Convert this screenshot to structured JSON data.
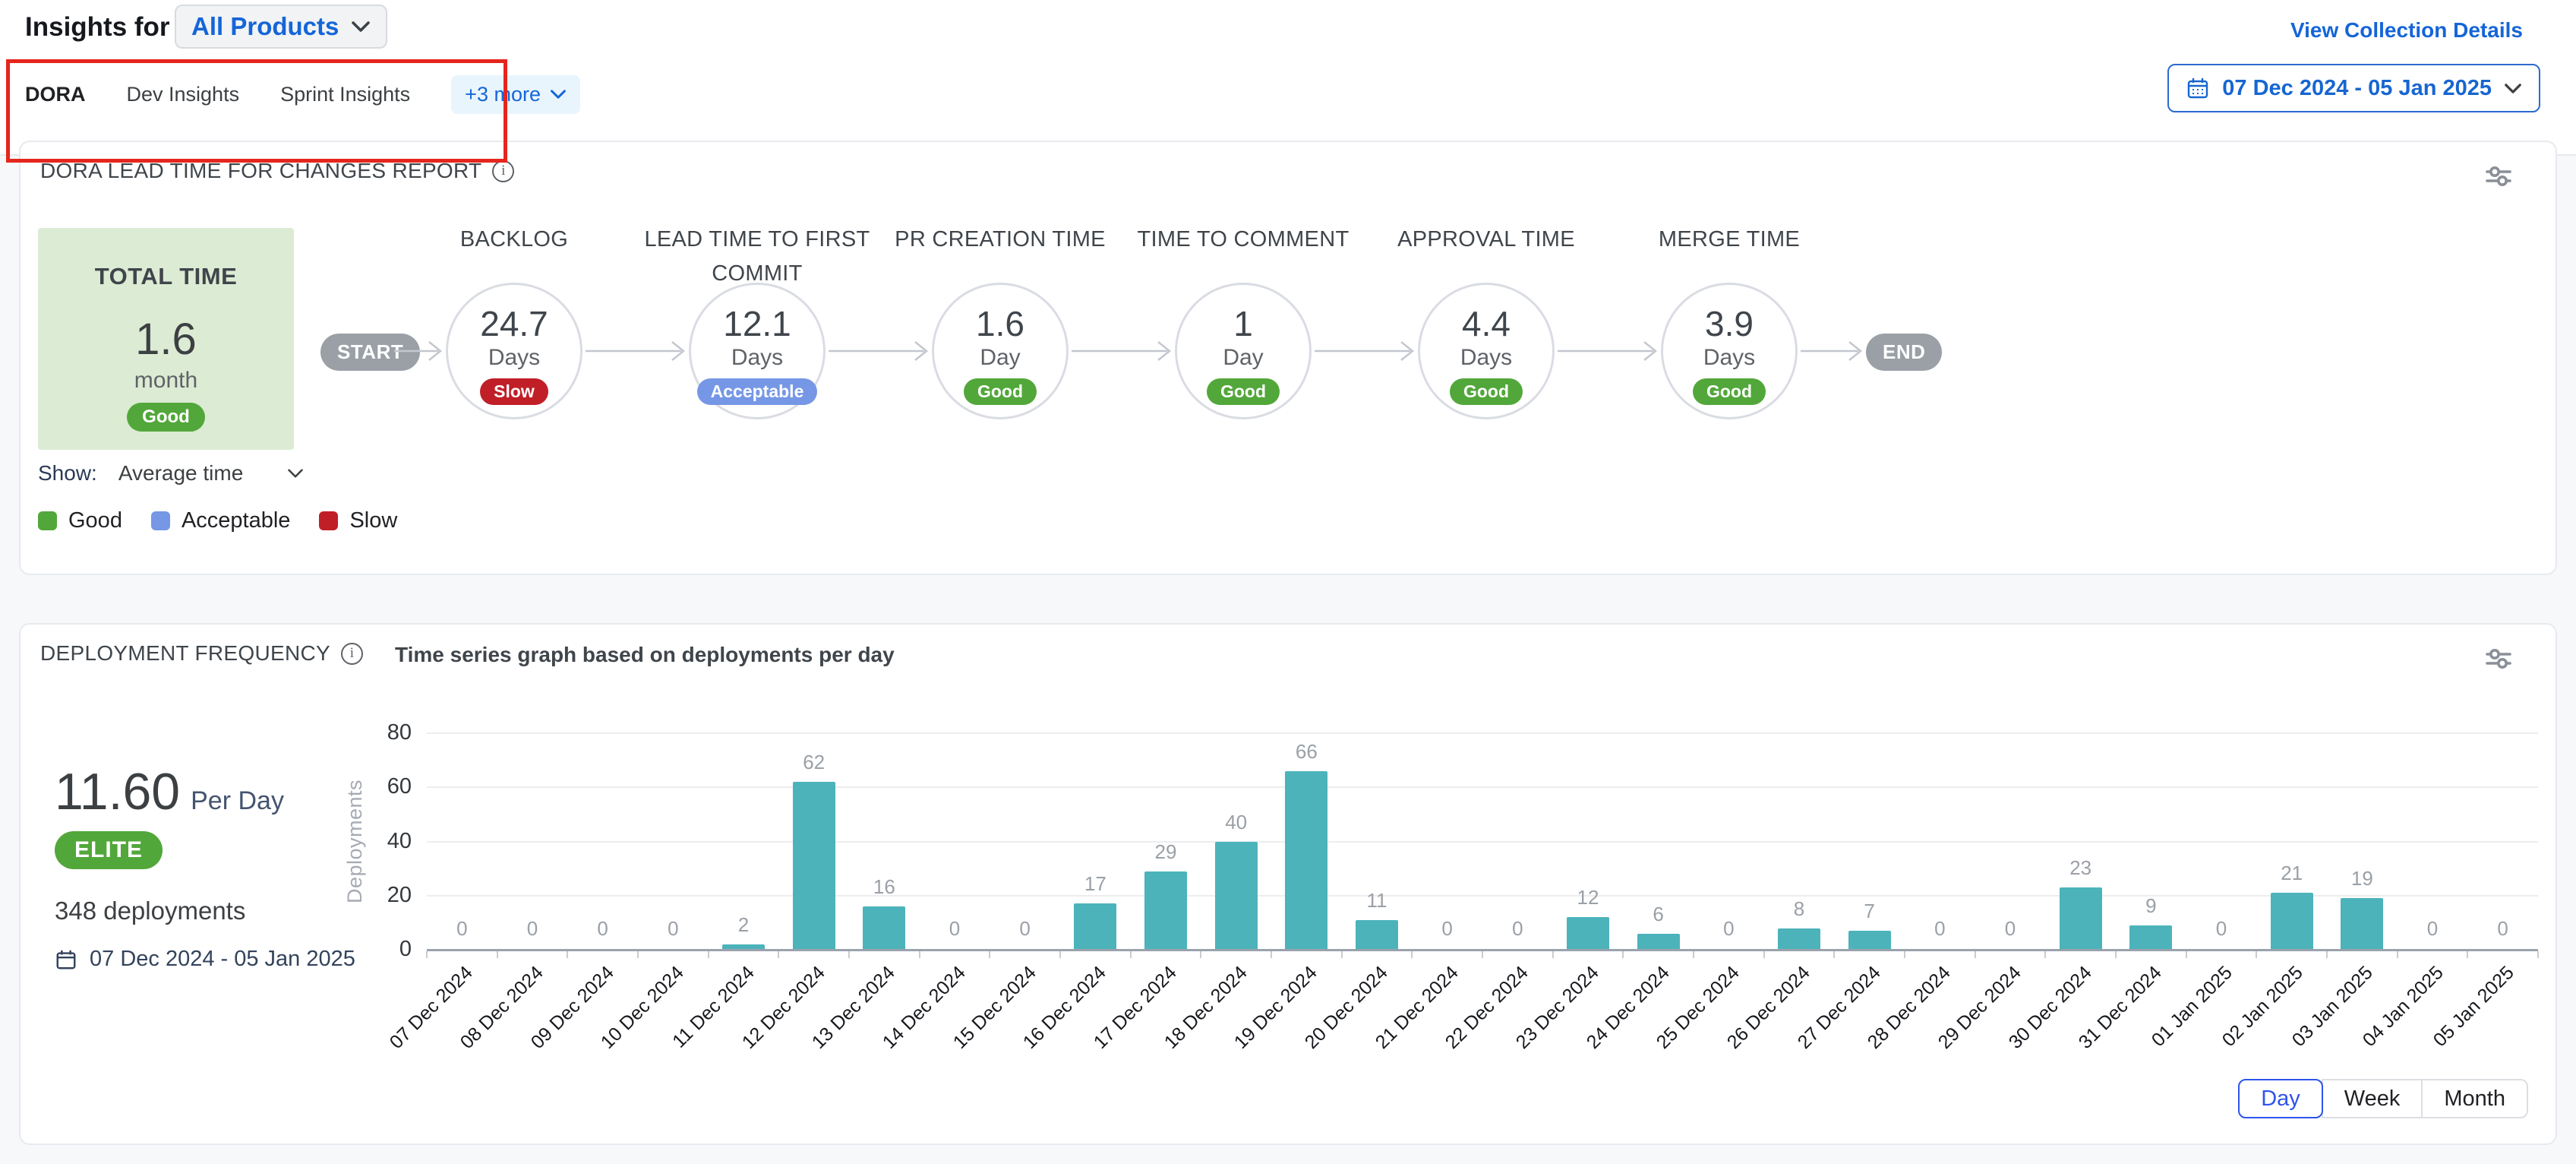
{
  "header": {
    "title": "Insights for",
    "product_selector_label": "All Products",
    "view_collection_details_label": "View Collection Details"
  },
  "tab_bar": {
    "tabs": [
      {
        "label": "DORA",
        "active": true
      },
      {
        "label": "Dev Insights",
        "active": false
      },
      {
        "label": "Sprint Insights",
        "active": false
      }
    ],
    "more_label": "+3 more"
  },
  "date_picker": {
    "range_label": "07 Dec 2024 - 05 Jan 2025"
  },
  "lead_time_card": {
    "title": "DORA LEAD TIME FOR CHANGES REPORT",
    "total": {
      "label": "TOTAL TIME",
      "value": "1.6",
      "unit": "month",
      "status": "Good"
    },
    "start_label": "START",
    "end_label": "END",
    "stages": [
      {
        "name": "BACKLOG",
        "value": "24.7",
        "unit": "Days",
        "status": "Slow"
      },
      {
        "name": "LEAD TIME TO FIRST COMMIT",
        "value": "12.1",
        "unit": "Days",
        "status": "Acceptable"
      },
      {
        "name": "PR CREATION TIME",
        "value": "1.6",
        "unit": "Day",
        "status": "Good"
      },
      {
        "name": "TIME TO COMMENT",
        "value": "1",
        "unit": "Day",
        "status": "Good"
      },
      {
        "name": "APPROVAL TIME",
        "value": "4.4",
        "unit": "Days",
        "status": "Good"
      },
      {
        "name": "MERGE TIME",
        "value": "3.9",
        "unit": "Days",
        "status": "Good"
      }
    ],
    "show": {
      "label": "Show:",
      "value": "Average time"
    },
    "legend": [
      {
        "label": "Good",
        "key": "good"
      },
      {
        "label": "Acceptable",
        "key": "acceptable"
      },
      {
        "label": "Slow",
        "key": "slow"
      }
    ]
  },
  "deployment_card": {
    "title": "DEPLOYMENT FREQUENCY",
    "rate": {
      "value": "11.60",
      "unit": "Per Day"
    },
    "tier_badge": "ELITE",
    "deployments_total": "348 deployments",
    "date_range": "07 Dec 2024 - 05 Jan 2025",
    "granularity": {
      "options": [
        "Day",
        "Week",
        "Month"
      ],
      "active": "Day"
    }
  },
  "chart_data": {
    "type": "bar",
    "title": "Time series graph based on deployments per day",
    "xlabel": "",
    "ylabel": "Deployments",
    "ylim": [
      0,
      80
    ],
    "yticks": [
      0,
      20,
      40,
      60,
      80
    ],
    "grid": true,
    "legend_position": "none",
    "categories": [
      "07 Dec 2024",
      "08 Dec 2024",
      "09 Dec 2024",
      "10 Dec 2024",
      "11 Dec 2024",
      "12 Dec 2024",
      "13 Dec 2024",
      "14 Dec 2024",
      "15 Dec 2024",
      "16 Dec 2024",
      "17 Dec 2024",
      "18 Dec 2024",
      "19 Dec 2024",
      "20 Dec 2024",
      "21 Dec 2024",
      "22 Dec 2024",
      "23 Dec 2024",
      "24 Dec 2024",
      "25 Dec 2024",
      "26 Dec 2024",
      "27 Dec 2024",
      "28 Dec 2024",
      "29 Dec 2024",
      "30 Dec 2024",
      "31 Dec 2024",
      "01 Jan 2025",
      "02 Jan 2025",
      "03 Jan 2025",
      "04 Jan 2025",
      "05 Jan 2025"
    ],
    "values": [
      0,
      0,
      0,
      0,
      2,
      62,
      16,
      0,
      0,
      17,
      29,
      40,
      66,
      11,
      0,
      0,
      12,
      6,
      0,
      8,
      7,
      0,
      0,
      23,
      9,
      0,
      21,
      19,
      0,
      0
    ]
  },
  "colors": {
    "good": "#52a73a",
    "acceptable": "#7697e5",
    "slow": "#c01f28",
    "bar": "#4cb3bb",
    "accent_blue": "#1565d8",
    "annotation_red": "#e5261d",
    "neutral_pill": "#9aa0a6"
  }
}
